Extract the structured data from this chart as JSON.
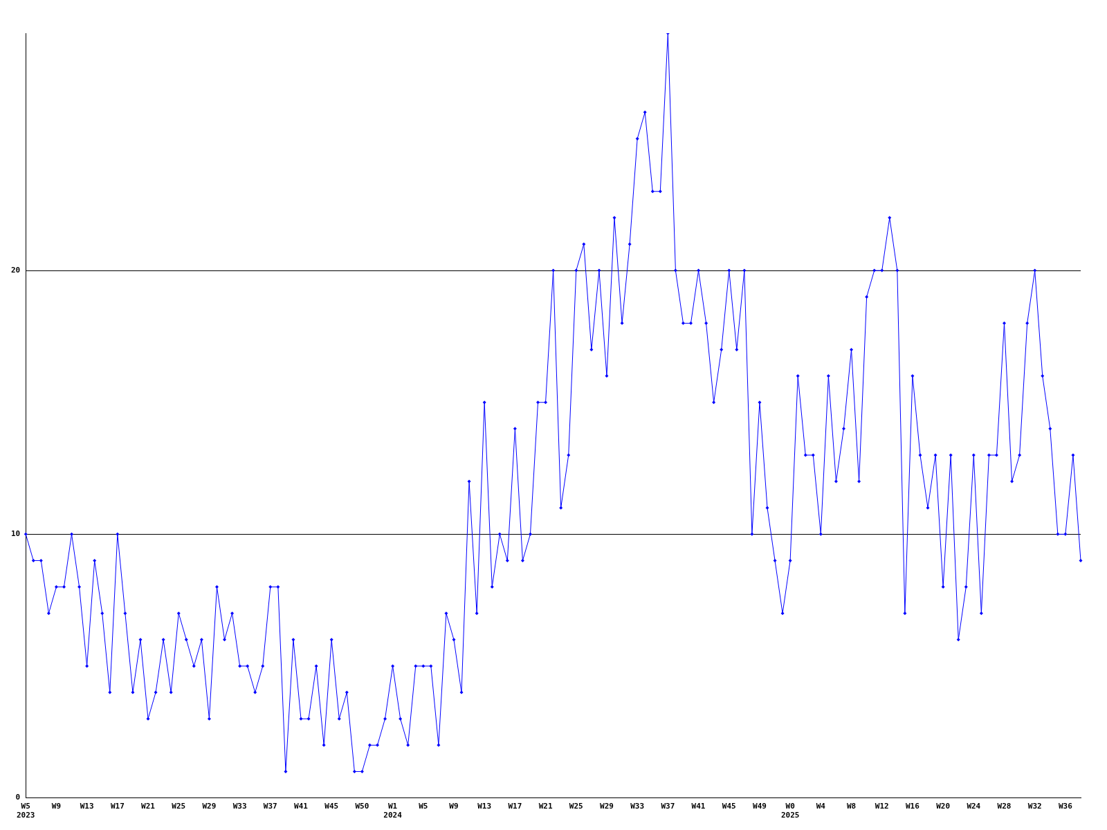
{
  "chart_data": {
    "type": "line",
    "categories": [
      "W5\n2023",
      null,
      null,
      null,
      "W9",
      null,
      null,
      null,
      "W13",
      null,
      null,
      null,
      "W17",
      null,
      null,
      null,
      "W21",
      null,
      null,
      null,
      "W25",
      null,
      null,
      null,
      "W29",
      null,
      null,
      null,
      "W33",
      null,
      null,
      null,
      "W37",
      null,
      null,
      null,
      "W41",
      null,
      null,
      null,
      "W45",
      null,
      null,
      null,
      "W50",
      null,
      null,
      null,
      "W1\n2024",
      null,
      null,
      null,
      "W5",
      null,
      null,
      null,
      "W9",
      null,
      null,
      null,
      "W13",
      null,
      null,
      null,
      "W17",
      null,
      null,
      null,
      "W21",
      null,
      null,
      null,
      "W25",
      null,
      null,
      null,
      "W29",
      null,
      null,
      null,
      "W33",
      null,
      null,
      null,
      "W37",
      null,
      null,
      null,
      "W41",
      null,
      null,
      null,
      "W45",
      null,
      null,
      null,
      "W49",
      null,
      null,
      null,
      "W0\n2025",
      null,
      null,
      null,
      "W4",
      null,
      null,
      null,
      "W8",
      null,
      null,
      null,
      "W12",
      null,
      null,
      null,
      "W16",
      null,
      null,
      null,
      "W20",
      null,
      null,
      null,
      "W24",
      null,
      null,
      null,
      "W28",
      null,
      null,
      null,
      "W32",
      null,
      null,
      null,
      "W36",
      null,
      null
    ],
    "series": [
      {
        "color": "#0000ff",
        "values": [
          10,
          9,
          9,
          7,
          8,
          8,
          10,
          8,
          5,
          9,
          7,
          4,
          10,
          7,
          4,
          6,
          3,
          4,
          6,
          4,
          7,
          6,
          5,
          6,
          3,
          8,
          6,
          7,
          5,
          5,
          4,
          5,
          8,
          8,
          1,
          6,
          3,
          3,
          5,
          2,
          6,
          3,
          4,
          1,
          1,
          2,
          2,
          3,
          5,
          3,
          2,
          5,
          5,
          5,
          2,
          7,
          6,
          4,
          12,
          7,
          15,
          8,
          10,
          9,
          14,
          9,
          10,
          15,
          15,
          20,
          11,
          13,
          20,
          21,
          17,
          20,
          16,
          22,
          18,
          21,
          25,
          26,
          23,
          23,
          29,
          20,
          18,
          18,
          20,
          18,
          15,
          17,
          20,
          17,
          20,
          10,
          15,
          11,
          9,
          7,
          9,
          16,
          13,
          13,
          10,
          16,
          12,
          14,
          17,
          12,
          19,
          20,
          20,
          22,
          20,
          7,
          16,
          13,
          11,
          13,
          8,
          13,
          6,
          8,
          13,
          7,
          13,
          13,
          18,
          12,
          13,
          18,
          20,
          16,
          14,
          10,
          10,
          13,
          9
        ]
      }
    ],
    "ylim": [
      0,
      29
    ],
    "yticks": [
      0,
      10,
      20
    ],
    "grid": "y",
    "marker": "diamond",
    "line_style": "solid"
  }
}
